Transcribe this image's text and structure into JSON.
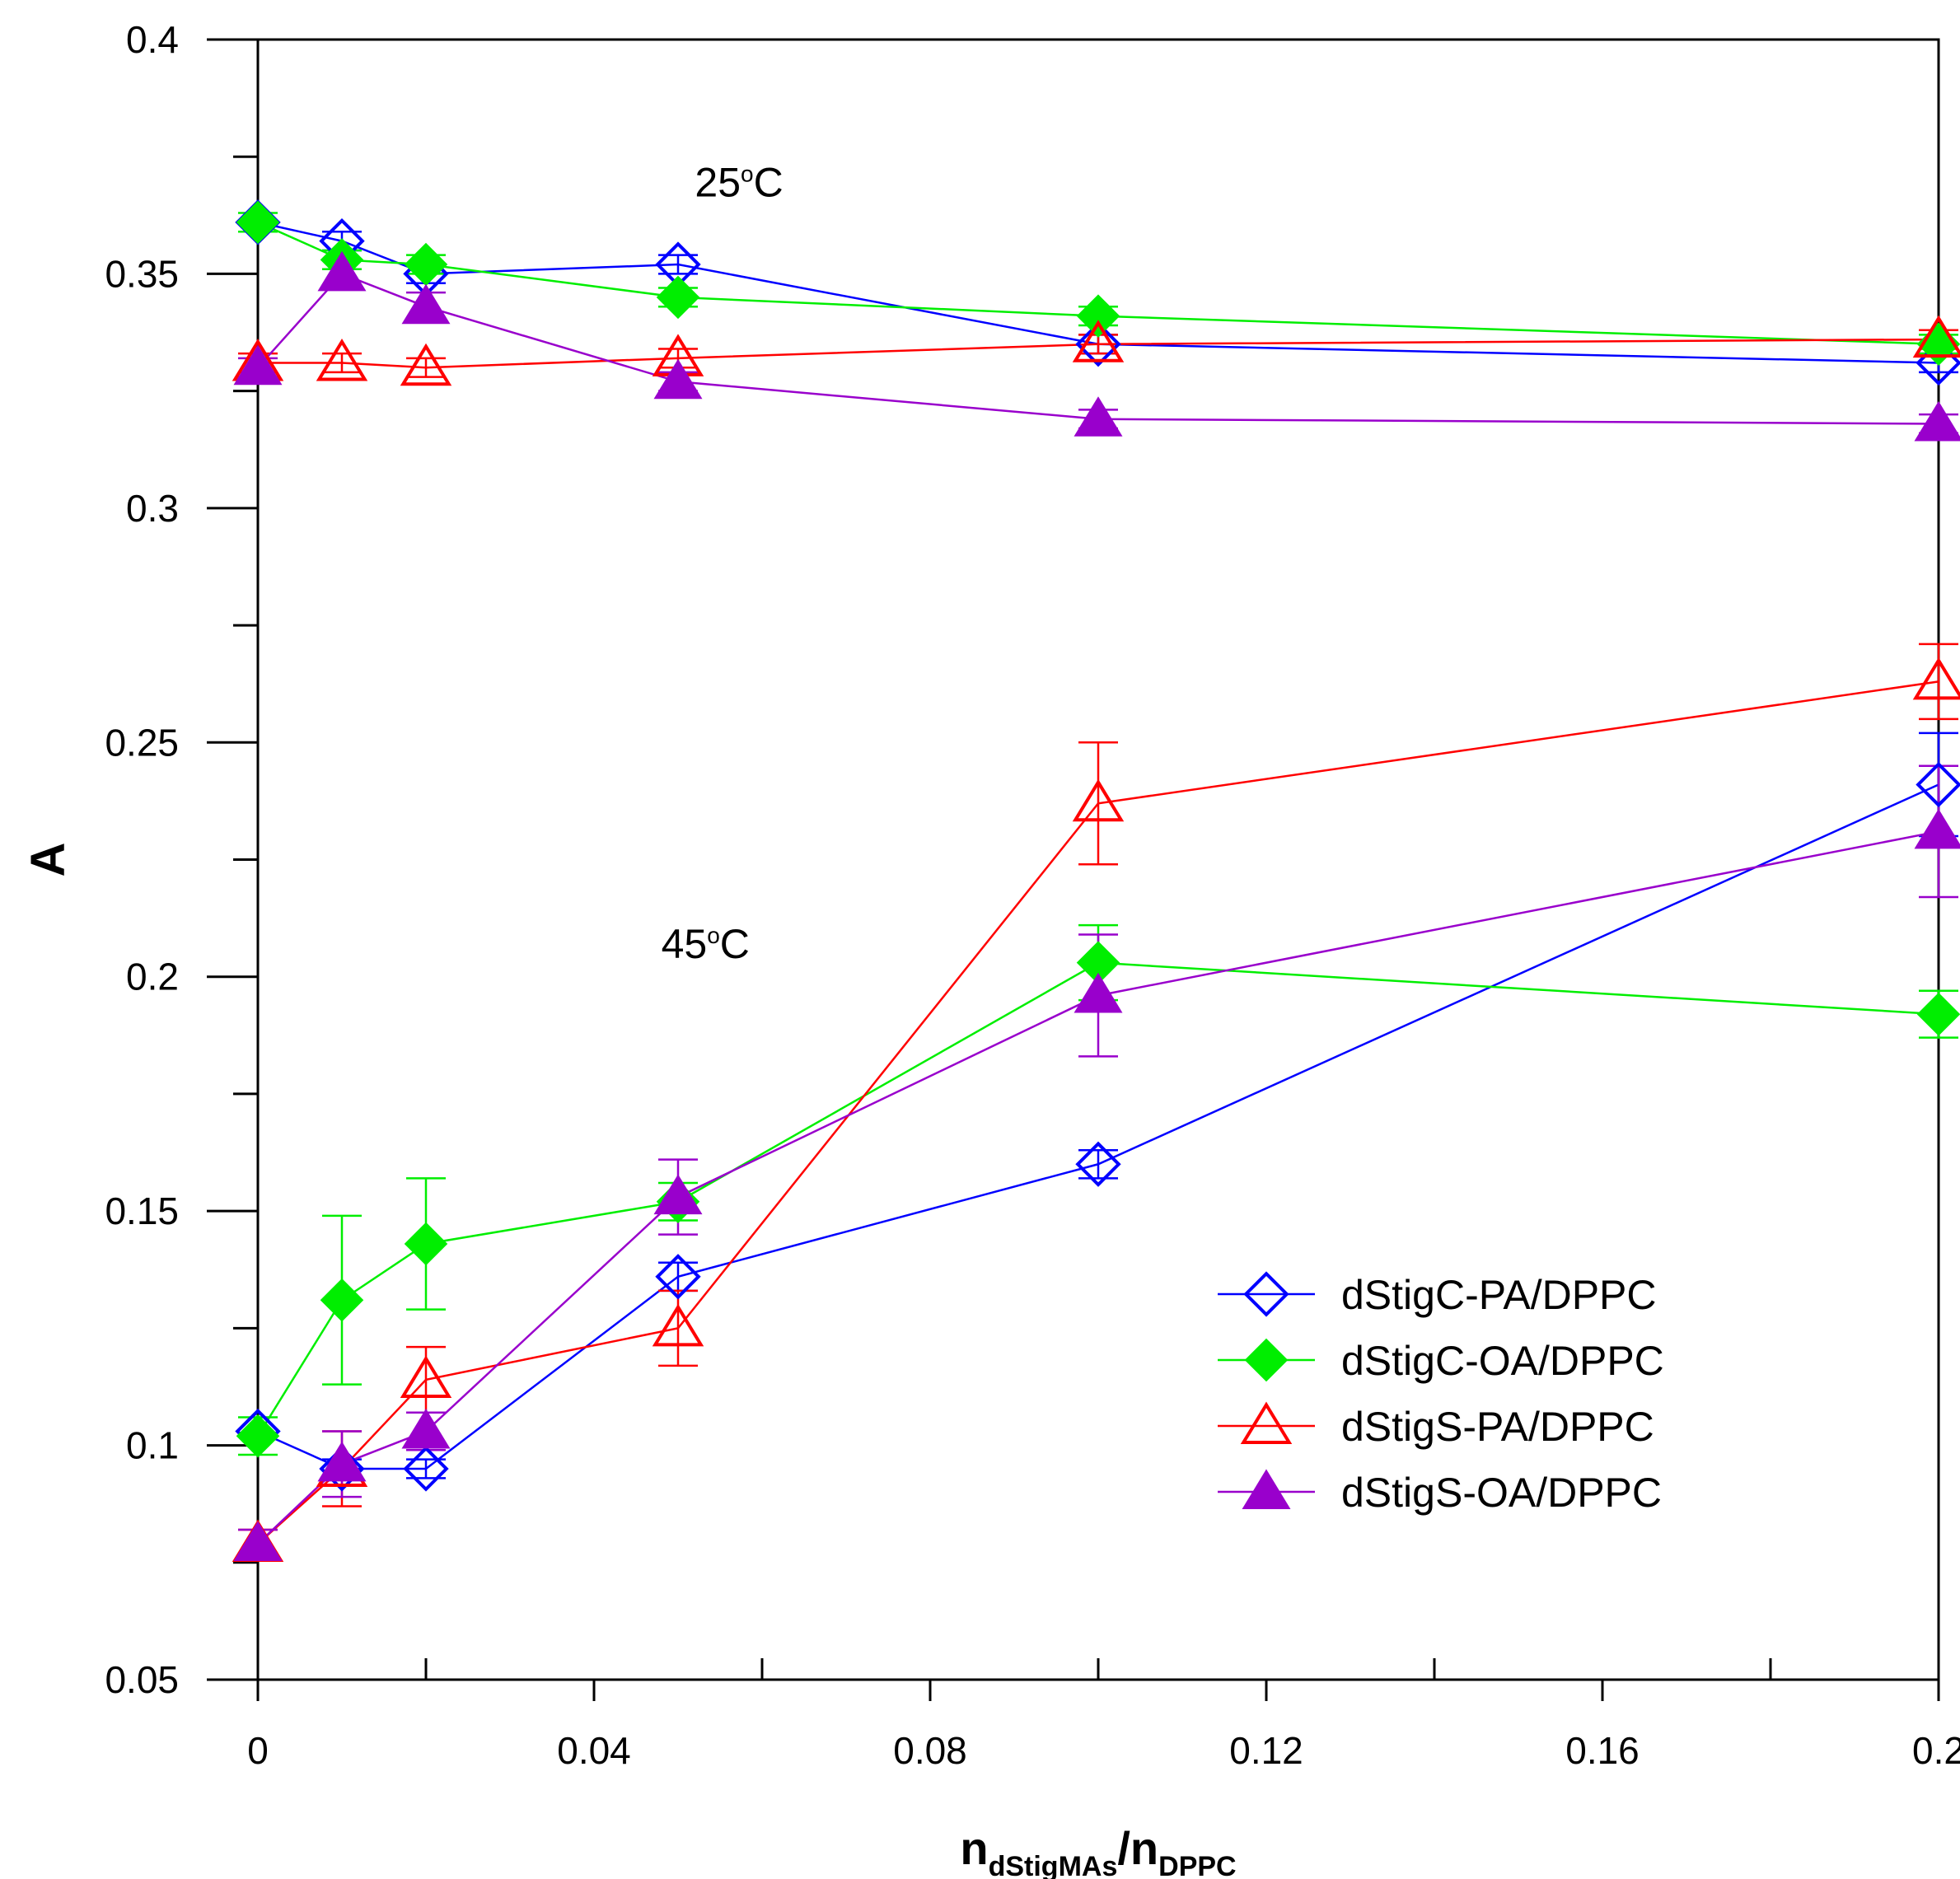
{
  "chart_data": {
    "type": "scatter",
    "xlabel": {
      "main": "n",
      "sub1": "dStigMAs",
      "sep": "/n",
      "sub2": "DPPC"
    },
    "ylabel": "A",
    "xlim": [
      0,
      0.2
    ],
    "ylim": [
      0.05,
      0.4
    ],
    "x_ticks": [
      "0",
      "0.04",
      "0.08",
      "0.12",
      "0.16",
      "0.2"
    ],
    "y_ticks": [
      "0.05",
      "0.1",
      "0.15",
      "0.2",
      "0.25",
      "0.3",
      "0.35",
      "0.4"
    ],
    "grid": false,
    "legend_position": "bottom-right",
    "annotations": [
      {
        "base": "25",
        "sup": "o",
        "unit": "C",
        "x": 0.052,
        "y": 0.3665
      },
      {
        "base": "45",
        "sup": "o",
        "unit": "C",
        "x": 0.048,
        "y": 0.204
      }
    ],
    "series": [
      {
        "name": "dStigC-PA/DPPC",
        "color": "#0000ff",
        "marker": "diamond-open",
        "curves": [
          {
            "label": "25",
            "x": [
              0,
              0.01,
              0.02,
              0.05,
              0.1,
              0.2
            ],
            "y": [
              0.361,
              0.357,
              0.35,
              0.352,
              0.335,
              0.331
            ],
            "err": [
              0,
              0.002,
              0.002,
              0.002,
              0.002,
              0.002
            ]
          },
          {
            "label": "45",
            "x": [
              0,
              0.01,
              0.02,
              0.05,
              0.1,
              0.2
            ],
            "y": [
              0.103,
              0.095,
              0.095,
              0.136,
              0.16,
              0.241
            ],
            "err": [
              0,
              0.002,
              0.002,
              0.003,
              0.003,
              0.011
            ]
          }
        ]
      },
      {
        "name": "dStigC-OA/DPPC",
        "color": "#00ee00",
        "marker": "diamond-filled",
        "curves": [
          {
            "label": "25",
            "x": [
              0,
              0.01,
              0.02,
              0.05,
              0.1,
              0.2
            ],
            "y": [
              0.361,
              0.353,
              0.352,
              0.345,
              0.341,
              0.335
            ],
            "err": [
              0.002,
              0.002,
              0.002,
              0.002,
              0.002,
              0.002
            ]
          },
          {
            "label": "45",
            "x": [
              0,
              0.01,
              0.02,
              0.05,
              0.1,
              0.2
            ],
            "y": [
              0.102,
              0.131,
              0.143,
              0.152,
              0.203,
              0.192
            ],
            "err": [
              0.004,
              0.018,
              0.014,
              0.004,
              0.008,
              0.005
            ]
          }
        ]
      },
      {
        "name": "dStigS-PA/DPPC",
        "color": "#ff0000",
        "marker": "triangle-open",
        "curves": [
          {
            "label": "25",
            "x": [
              0,
              0.01,
              0.02,
              0.05,
              0.1,
              0.2
            ],
            "y": [
              0.331,
              0.331,
              0.33,
              0.332,
              0.335,
              0.336
            ],
            "err": [
              0.002,
              0.002,
              0.002,
              0.002,
              0.002,
              0.002
            ]
          },
          {
            "label": "45",
            "x": [
              0,
              0.01,
              0.02,
              0.05,
              0.1,
              0.2
            ],
            "y": [
              0.079,
              0.095,
              0.114,
              0.125,
              0.237,
              0.263
            ],
            "err": [
              0.003,
              0.008,
              0.007,
              0.008,
              0.013,
              0.008
            ]
          }
        ]
      },
      {
        "name": "dStigS-OA/DPPC",
        "color": "#9900cc",
        "marker": "triangle-filled",
        "curves": [
          {
            "label": "25",
            "x": [
              0,
              0.01,
              0.02,
              0.05,
              0.1,
              0.2
            ],
            "y": [
              0.33,
              0.35,
              0.343,
              0.327,
              0.319,
              0.318
            ],
            "err": [
              0.002,
              0.003,
              0.003,
              0.002,
              0.002,
              0.002
            ]
          },
          {
            "label": "45",
            "x": [
              0,
              0.01,
              0.02,
              0.05,
              0.1,
              0.2
            ],
            "y": [
              0.079,
              0.096,
              0.103,
              0.153,
              0.196,
              0.231
            ],
            "err": [
              0.003,
              0.007,
              0.004,
              0.008,
              0.013,
              0.014
            ]
          }
        ]
      }
    ]
  }
}
